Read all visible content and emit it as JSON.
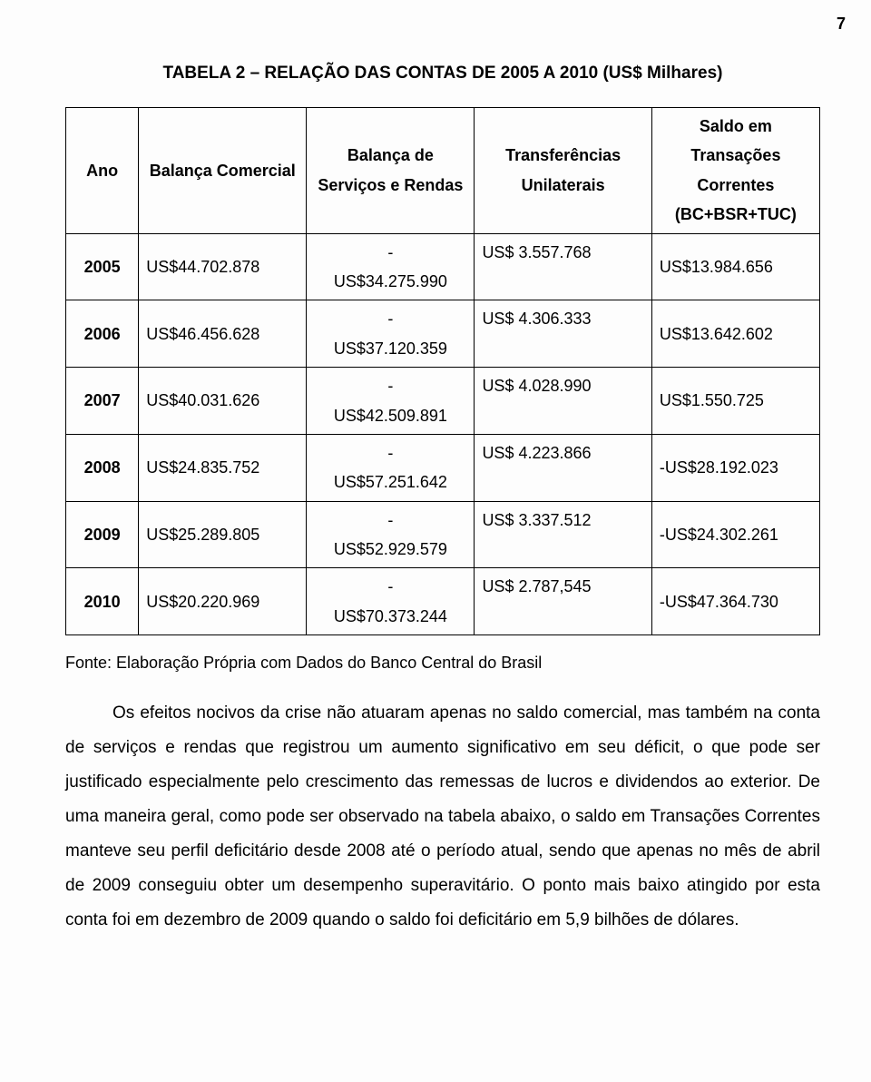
{
  "page_number": "7",
  "table": {
    "title": "TABELA 2 – RELAÇÃO DAS CONTAS DE 2005 A 2010 (US$ Milhares)",
    "columns": [
      "Ano",
      "Balança Comercial",
      "Balança de Serviços e Rendas",
      "Transferências Unilaterais",
      "Saldo em Transações Correntes (BC+BSR+TUC)"
    ],
    "rows": [
      {
        "year": "2005",
        "bc": "US$44.702.878",
        "svc": "-\nUS$34.275.990",
        "tu": "US$ 3.557.768",
        "saldo": "US$13.984.656"
      },
      {
        "year": "2006",
        "bc": "US$46.456.628",
        "svc": "-\nUS$37.120.359",
        "tu": "US$ 4.306.333",
        "saldo": "US$13.642.602"
      },
      {
        "year": "2007",
        "bc": "US$40.031.626",
        "svc": "-\nUS$42.509.891",
        "tu": "US$ 4.028.990",
        "saldo": "US$1.550.725"
      },
      {
        "year": "2008",
        "bc": "US$24.835.752",
        "svc": "-\nUS$57.251.642",
        "tu": "US$ 4.223.866",
        "saldo": "-US$28.192.023"
      },
      {
        "year": "2009",
        "bc": "US$25.289.805",
        "svc": "-\nUS$52.929.579",
        "tu": "US$ 3.337.512",
        "saldo": "-US$24.302.261"
      },
      {
        "year": "2010",
        "bc": "US$20.220.969",
        "svc": "-\nUS$70.373.244",
        "tu": "US$ 2.787,545",
        "saldo": "-US$47.364.730"
      }
    ],
    "source": "Fonte: Elaboração Própria com Dados do Banco Central do Brasil"
  },
  "paragraph": "Os efeitos nocivos da crise não atuaram apenas no saldo comercial, mas também na conta de serviços e rendas que registrou um aumento significativo em seu déficit, o que pode ser justificado especialmente pelo crescimento das remessas de lucros e dividendos ao exterior. De uma maneira geral, como pode ser observado na tabela abaixo, o saldo em Transações Correntes manteve seu perfil deficitário desde 2008 até o período atual, sendo que apenas no mês de abril de 2009 conseguiu obter um desempenho superavitário. O ponto mais baixo atingido por esta conta foi em dezembro de 2009 quando o saldo foi deficitário em 5,9 bilhões de dólares."
}
